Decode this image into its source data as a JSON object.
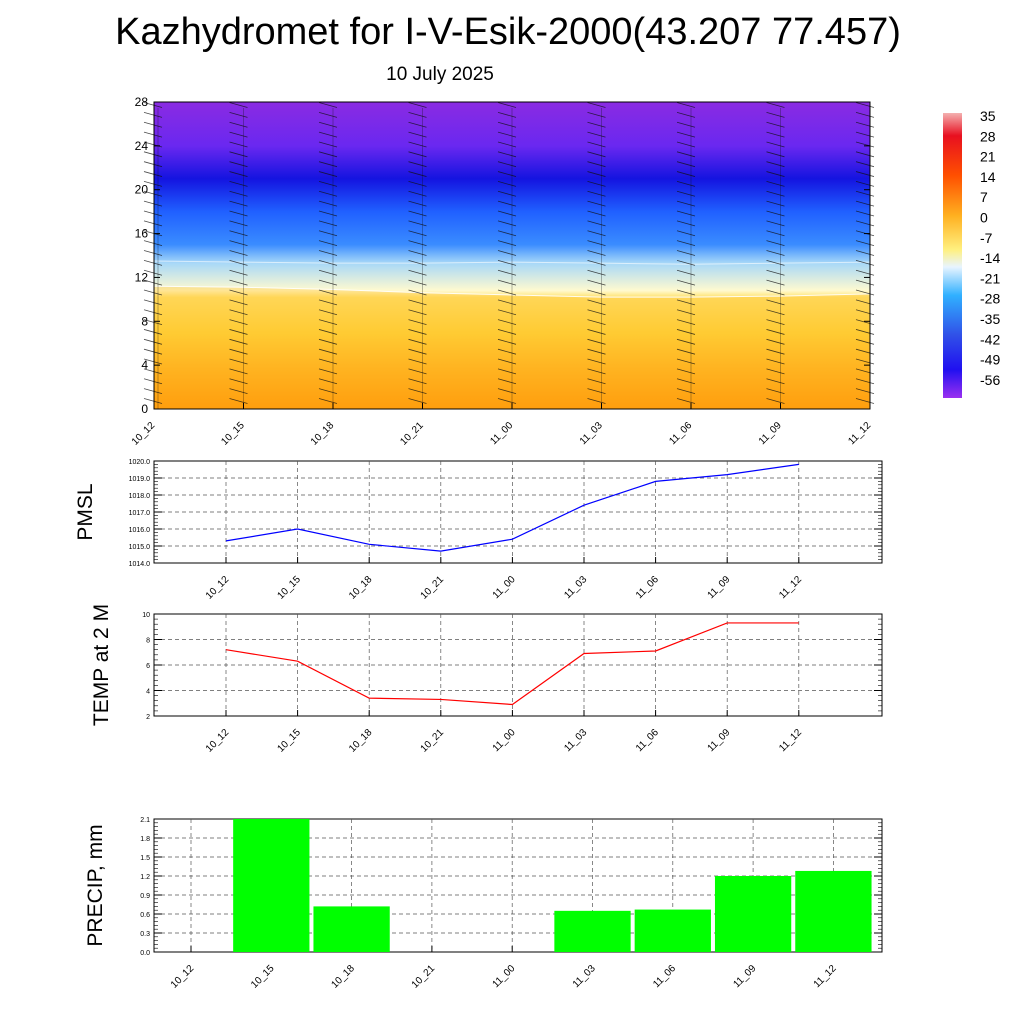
{
  "title": "Kazhydromet for I-V-Esik-2000(43.207 77.457)",
  "subtitle": "10 July 2025",
  "chart_data": [
    {
      "type": "heatmap",
      "x_categories": [
        "10_12",
        "10_15",
        "10_18",
        "10_21",
        "11_00",
        "11_03",
        "11_06",
        "11_09",
        "11_12"
      ],
      "y_ticks": [
        0,
        4,
        8,
        12,
        16,
        20,
        24,
        28
      ],
      "ylim": [
        0,
        28
      ],
      "colorbar_labels": [
        "35",
        "28",
        "21",
        "14",
        "7",
        "0",
        "-7",
        "-14",
        "-21",
        "-28",
        "-35",
        "-42",
        "-49",
        "-56"
      ],
      "freezing_level": [
        11.2,
        11.1,
        10.9,
        10.6,
        10.4,
        10.2,
        10.2,
        10.3,
        10.5
      ],
      "cold_level": [
        13.5,
        13.4,
        13.3,
        13.3,
        13.4,
        13.3,
        13.2,
        13.3,
        13.4
      ],
      "colors": {
        "warm": "#ff8c00",
        "mild": "#ffd23a",
        "freeze": "#fff5a0",
        "cold": "#4a6cf0",
        "deep": "#1414e0",
        "top": "#8a2be2"
      }
    },
    {
      "type": "line",
      "ylabel": "PMSL",
      "categories": [
        "10_12",
        "10_15",
        "10_18",
        "10_21",
        "11_00",
        "11_03",
        "11_06",
        "11_09",
        "11_12"
      ],
      "values": [
        1015.3,
        1016.0,
        1015.1,
        1014.7,
        1015.4,
        1017.4,
        1018.8,
        1019.2,
        1019.8
      ],
      "yticks": [
        "1014.0",
        "1015.0",
        "1016.0",
        "1017.0",
        "1018.0",
        "1019.0",
        "1020.0"
      ],
      "ylim": [
        1014,
        1020
      ],
      "color": "#0000ff"
    },
    {
      "type": "line",
      "ylabel": "TEMP at 2 M",
      "categories": [
        "10_12",
        "10_15",
        "10_18",
        "10_21",
        "11_00",
        "11_03",
        "11_06",
        "11_09",
        "11_12"
      ],
      "values": [
        7.2,
        6.3,
        3.4,
        3.3,
        2.9,
        6.9,
        7.1,
        9.3,
        9.3
      ],
      "yticks": [
        "2",
        "4",
        "6",
        "8",
        "10"
      ],
      "ylim": [
        2,
        10
      ],
      "color": "#ff0000"
    },
    {
      "type": "bar",
      "ylabel": "PRECIP, mm",
      "categories": [
        "10_12",
        "10_15",
        "10_18",
        "10_21",
        "11_00",
        "11_03",
        "11_06",
        "11_09",
        "11_12"
      ],
      "values": [
        0,
        2.1,
        0.72,
        0,
        0,
        0.65,
        0.67,
        1.2,
        1.28
      ],
      "yticks": [
        "0.0",
        "0.3",
        "0.6",
        "0.9",
        "1.2",
        "1.5",
        "1.8",
        "2.1"
      ],
      "ylim": [
        0,
        2.1
      ],
      "color": "#00ff00"
    }
  ]
}
